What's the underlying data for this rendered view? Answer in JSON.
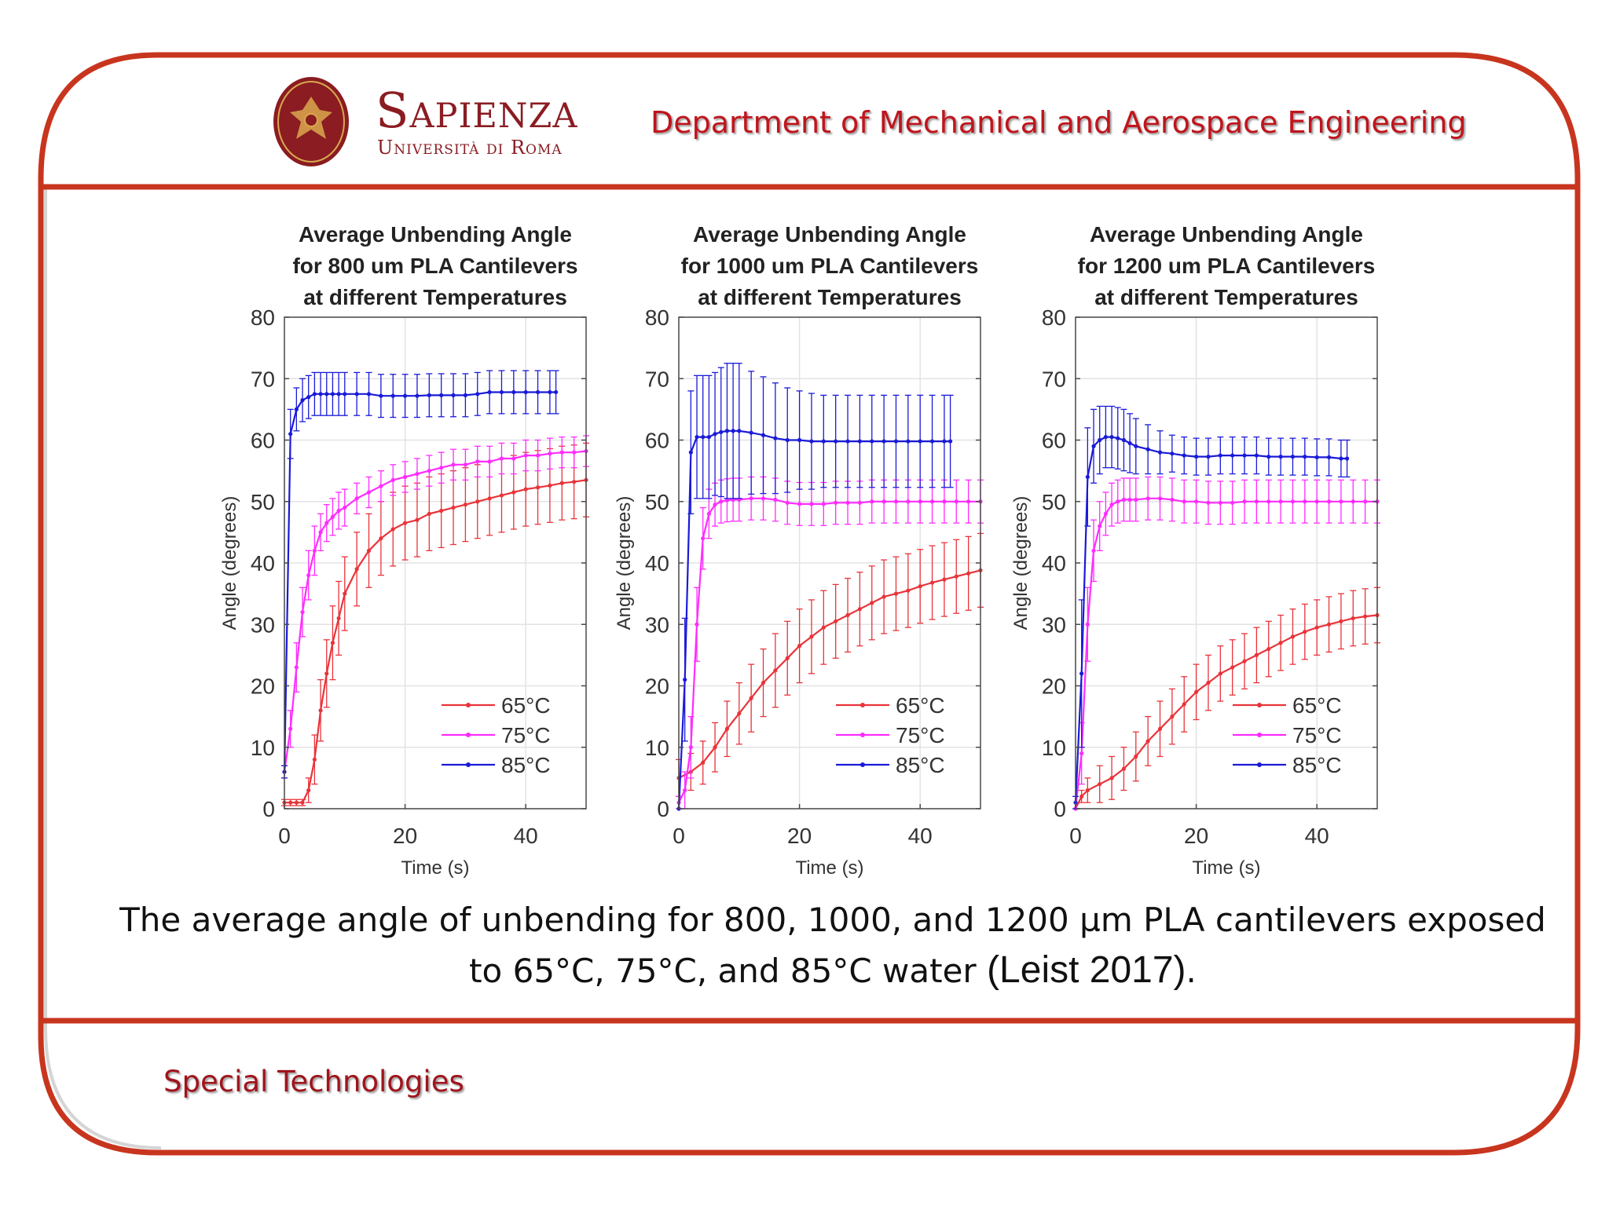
{
  "header": {
    "brand_name": "Sapienza",
    "brand_sub": "Università di Roma",
    "department": "Department of Mechanical and Aerospace Engineering"
  },
  "caption": {
    "line1": "The average angle of unbending for 800, 1000, and 1200 µm PLA cantilevers exposed",
    "line2_main": "to 65°C, 75°C, and 85°C water ",
    "line2_cite": "(Leist 2017)",
    "line2_end": "."
  },
  "footer": {
    "label": "Special Technologies"
  },
  "colors": {
    "frame": "#c8351e",
    "brand": "#8a1c22",
    "s65": "#e8343a",
    "s75": "#ff2cff",
    "s85": "#1a1ad8"
  },
  "chart_data": [
    {
      "type": "line",
      "title": [
        "Average Unbending Angle",
        "for 800 um PLA Cantilevers",
        "at different Temperatures"
      ],
      "xlabel": "Time (s)",
      "ylabel": "Angle (degrees)",
      "xlim": [
        0,
        50
      ],
      "ylim": [
        0,
        80
      ],
      "xticks": [
        0,
        20,
        40
      ],
      "yticks": [
        0,
        10,
        20,
        30,
        40,
        50,
        60,
        70,
        80
      ],
      "grid": true,
      "legend_position": "bottom-right",
      "series": [
        {
          "name": "65°C",
          "x": [
            0,
            1,
            2,
            3,
            4,
            5,
            6,
            7,
            8,
            9,
            10,
            12,
            14,
            16,
            18,
            20,
            22,
            24,
            26,
            28,
            30,
            32,
            34,
            36,
            38,
            40,
            42,
            44,
            46,
            48,
            50
          ],
          "y": [
            1,
            1,
            1,
            1,
            3,
            8,
            16,
            22,
            27,
            31,
            35,
            39,
            42,
            44,
            45.5,
            46.5,
            47,
            48,
            48.5,
            49,
            49.5,
            50,
            50.5,
            51,
            51.5,
            52,
            52.3,
            52.6,
            53,
            53.2,
            53.5
          ],
          "err": [
            0.5,
            0.5,
            0.5,
            0.5,
            2,
            4,
            5,
            5.5,
            6,
            6,
            6,
            6,
            6,
            6,
            6,
            6,
            6,
            6,
            6,
            6,
            6,
            6,
            6,
            6,
            6,
            6,
            6,
            6,
            6,
            6,
            6
          ]
        },
        {
          "name": "75°C",
          "x": [
            0,
            1,
            2,
            3,
            4,
            5,
            6,
            7,
            8,
            9,
            10,
            12,
            14,
            16,
            18,
            20,
            22,
            24,
            26,
            28,
            30,
            32,
            34,
            36,
            38,
            40,
            42,
            44,
            46,
            48,
            50
          ],
          "y": [
            6,
            13,
            23,
            32,
            38,
            42,
            45,
            46.5,
            47.5,
            48.5,
            49,
            50.5,
            51.5,
            52.5,
            53.5,
            54,
            54.5,
            55,
            55.5,
            56,
            56,
            56.5,
            56.5,
            57,
            57,
            57.5,
            57.5,
            57.8,
            58,
            58,
            58.2
          ],
          "err": [
            1,
            3,
            4,
            4,
            4,
            4,
            3,
            3,
            3,
            3,
            3,
            2.5,
            2.5,
            2.5,
            2.5,
            2.5,
            2.5,
            2.5,
            2.5,
            2.5,
            2.5,
            2.5,
            2.5,
            2.5,
            2.5,
            2.5,
            2.5,
            2.5,
            2.5,
            2.5,
            2.5
          ]
        },
        {
          "name": "85°C",
          "x": [
            0,
            1,
            2,
            3,
            4,
            5,
            6,
            7,
            8,
            9,
            10,
            12,
            14,
            16,
            18,
            20,
            22,
            24,
            26,
            28,
            30,
            32,
            34,
            36,
            38,
            40,
            42,
            44,
            45
          ],
          "y": [
            6,
            61,
            65,
            66.5,
            67,
            67.5,
            67.5,
            67.5,
            67.5,
            67.5,
            67.5,
            67.5,
            67.5,
            67.2,
            67.2,
            67.2,
            67.2,
            67.3,
            67.3,
            67.3,
            67.3,
            67.5,
            67.8,
            67.8,
            67.8,
            67.8,
            67.8,
            67.8,
            67.8
          ],
          "err": [
            1,
            4,
            3.5,
            3.5,
            3.5,
            3.5,
            3.5,
            3.5,
            3.5,
            3.5,
            3.5,
            3.5,
            3.5,
            3.5,
            3.5,
            3.5,
            3.5,
            3.5,
            3.5,
            3.5,
            3.5,
            3.5,
            3.5,
            3.5,
            3.5,
            3.5,
            3.5,
            3.5,
            3.5
          ]
        }
      ]
    },
    {
      "type": "line",
      "title": [
        "Average Unbending Angle",
        "for 1000 um PLA Cantilevers",
        "at different Temperatures"
      ],
      "xlabel": "Time (s)",
      "ylabel": "Angle (degrees)",
      "xlim": [
        0,
        50
      ],
      "ylim": [
        0,
        80
      ],
      "xticks": [
        0,
        20,
        40
      ],
      "yticks": [
        0,
        10,
        20,
        30,
        40,
        50,
        60,
        70,
        80
      ],
      "grid": true,
      "legend_position": "bottom-right",
      "series": [
        {
          "name": "65°C",
          "x": [
            0,
            2,
            4,
            6,
            8,
            10,
            12,
            14,
            16,
            18,
            20,
            22,
            24,
            26,
            28,
            30,
            32,
            34,
            36,
            38,
            40,
            42,
            44,
            46,
            48,
            50
          ],
          "y": [
            5,
            6,
            7.5,
            10,
            13,
            15.5,
            18,
            20.5,
            22.5,
            24.5,
            26.5,
            28,
            29.5,
            30.5,
            31.5,
            32.5,
            33.5,
            34.5,
            35,
            35.5,
            36.2,
            36.8,
            37.3,
            37.8,
            38.3,
            38.8
          ],
          "err": [
            3,
            3,
            3.5,
            4,
            4.5,
            5,
            5.5,
            5.5,
            6,
            6,
            6,
            6,
            6,
            6,
            6,
            6,
            6,
            6,
            6,
            6,
            6,
            6,
            6,
            6,
            6,
            6
          ]
        },
        {
          "name": "75°C",
          "x": [
            0,
            1,
            2,
            3,
            4,
            5,
            6,
            7,
            8,
            9,
            10,
            12,
            14,
            16,
            18,
            20,
            22,
            24,
            26,
            28,
            30,
            32,
            34,
            36,
            38,
            40,
            42,
            44,
            46,
            48,
            50
          ],
          "y": [
            1,
            3,
            10,
            30,
            44,
            48,
            49.5,
            50,
            50.2,
            50.3,
            50.3,
            50.5,
            50.5,
            50.3,
            49.8,
            49.6,
            49.6,
            49.6,
            49.8,
            49.8,
            49.8,
            50,
            50,
            50,
            50,
            50,
            50,
            50,
            50,
            50,
            50
          ],
          "err": [
            1,
            3,
            5,
            6,
            5,
            4,
            3.5,
            3.5,
            3.5,
            3.5,
            3.5,
            3.5,
            3.5,
            3.5,
            3.5,
            3.5,
            3.5,
            3.5,
            3.5,
            3.5,
            3.5,
            3.5,
            3.5,
            3.5,
            3.5,
            3.5,
            3.5,
            3.5,
            3.5,
            3.5,
            3.5
          ]
        },
        {
          "name": "85°C",
          "x": [
            0,
            1,
            2,
            3,
            4,
            5,
            6,
            7,
            8,
            9,
            10,
            12,
            14,
            16,
            18,
            20,
            22,
            24,
            26,
            28,
            30,
            32,
            34,
            36,
            38,
            40,
            42,
            44,
            45
          ],
          "y": [
            0,
            21,
            58,
            60.5,
            60.5,
            60.5,
            61,
            61.3,
            61.5,
            61.5,
            61.5,
            61.2,
            60.8,
            60.3,
            60,
            60,
            59.8,
            59.8,
            59.8,
            59.8,
            59.8,
            59.8,
            59.8,
            59.8,
            59.8,
            59.8,
            59.8,
            59.8,
            59.8
          ],
          "err": [
            0,
            10,
            10,
            10,
            10,
            10,
            10,
            10.5,
            11,
            11,
            11,
            10,
            9.5,
            9,
            8.5,
            8,
            7.8,
            7.5,
            7.5,
            7.5,
            7.5,
            7.5,
            7.5,
            7.5,
            7.5,
            7.5,
            7.5,
            7.5,
            7.5
          ]
        }
      ]
    },
    {
      "type": "line",
      "title": [
        "Average Unbending Angle",
        "for 1200 um PLA Cantilevers",
        "at different Temperatures"
      ],
      "xlabel": "Time (s)",
      "ylabel": "Angle (degrees)",
      "xlim": [
        0,
        50
      ],
      "ylim": [
        0,
        80
      ],
      "xticks": [
        0,
        20,
        40
      ],
      "yticks": [
        0,
        10,
        20,
        30,
        40,
        50,
        60,
        70,
        80
      ],
      "grid": true,
      "legend_position": "bottom-right",
      "series": [
        {
          "name": "65°C",
          "x": [
            0,
            1,
            2,
            4,
            6,
            8,
            10,
            12,
            14,
            16,
            18,
            20,
            22,
            24,
            26,
            28,
            30,
            32,
            34,
            36,
            38,
            40,
            42,
            44,
            46,
            48,
            50
          ],
          "y": [
            0,
            2,
            3,
            4,
            5,
            6.5,
            8.5,
            11,
            13,
            15,
            17,
            19,
            20.5,
            22,
            23,
            24,
            25,
            26,
            27,
            28,
            28.8,
            29.5,
            30,
            30.5,
            31,
            31.3,
            31.5
          ],
          "err": [
            0,
            1,
            2,
            3,
            3.5,
            3.5,
            4,
            4,
            4.5,
            4.5,
            4.5,
            4.5,
            4.5,
            4.5,
            4.5,
            4.5,
            4.5,
            4.5,
            4.5,
            4.5,
            4.5,
            4.5,
            4.5,
            4.5,
            4.5,
            4.5,
            4.5
          ]
        },
        {
          "name": "75°C",
          "x": [
            0,
            1,
            2,
            3,
            4,
            5,
            6,
            7,
            8,
            9,
            10,
            12,
            14,
            16,
            18,
            20,
            22,
            24,
            26,
            28,
            30,
            32,
            34,
            36,
            38,
            40,
            42,
            44,
            46,
            48,
            50
          ],
          "y": [
            0,
            9,
            30,
            42,
            46,
            48,
            49.5,
            50,
            50.3,
            50.3,
            50.3,
            50.5,
            50.5,
            50.3,
            50,
            50,
            49.8,
            49.8,
            49.8,
            50,
            50,
            50,
            50,
            50,
            50,
            50,
            50,
            50,
            50,
            50,
            50
          ],
          "err": [
            0,
            5,
            6,
            5,
            4,
            3.5,
            3.5,
            3.5,
            3.5,
            3.5,
            3.5,
            3.5,
            3.5,
            3.5,
            3.5,
            3.5,
            3.5,
            3.5,
            3.5,
            3.5,
            3.5,
            3.5,
            3.5,
            3.5,
            3.5,
            3.5,
            3.5,
            3.5,
            3.5,
            3.5,
            3.5
          ]
        },
        {
          "name": "85°C",
          "x": [
            0,
            1,
            2,
            3,
            4,
            5,
            6,
            7,
            8,
            9,
            10,
            12,
            14,
            16,
            18,
            20,
            22,
            24,
            26,
            28,
            30,
            32,
            34,
            36,
            38,
            40,
            42,
            44,
            45
          ],
          "y": [
            1,
            22,
            54,
            59,
            60,
            60.5,
            60.5,
            60.3,
            60,
            59.5,
            59,
            58.5,
            58,
            57.8,
            57.5,
            57.3,
            57.3,
            57.5,
            57.5,
            57.5,
            57.5,
            57.3,
            57.3,
            57.3,
            57.3,
            57.2,
            57.2,
            57,
            57
          ],
          "err": [
            1,
            12,
            8,
            6,
            5.5,
            5,
            5,
            5,
            5,
            4.8,
            4.5,
            4,
            3.5,
            3,
            3,
            3,
            3,
            3,
            3,
            3,
            3,
            3,
            3,
            3,
            3,
            3,
            3,
            3,
            3
          ]
        }
      ]
    }
  ]
}
